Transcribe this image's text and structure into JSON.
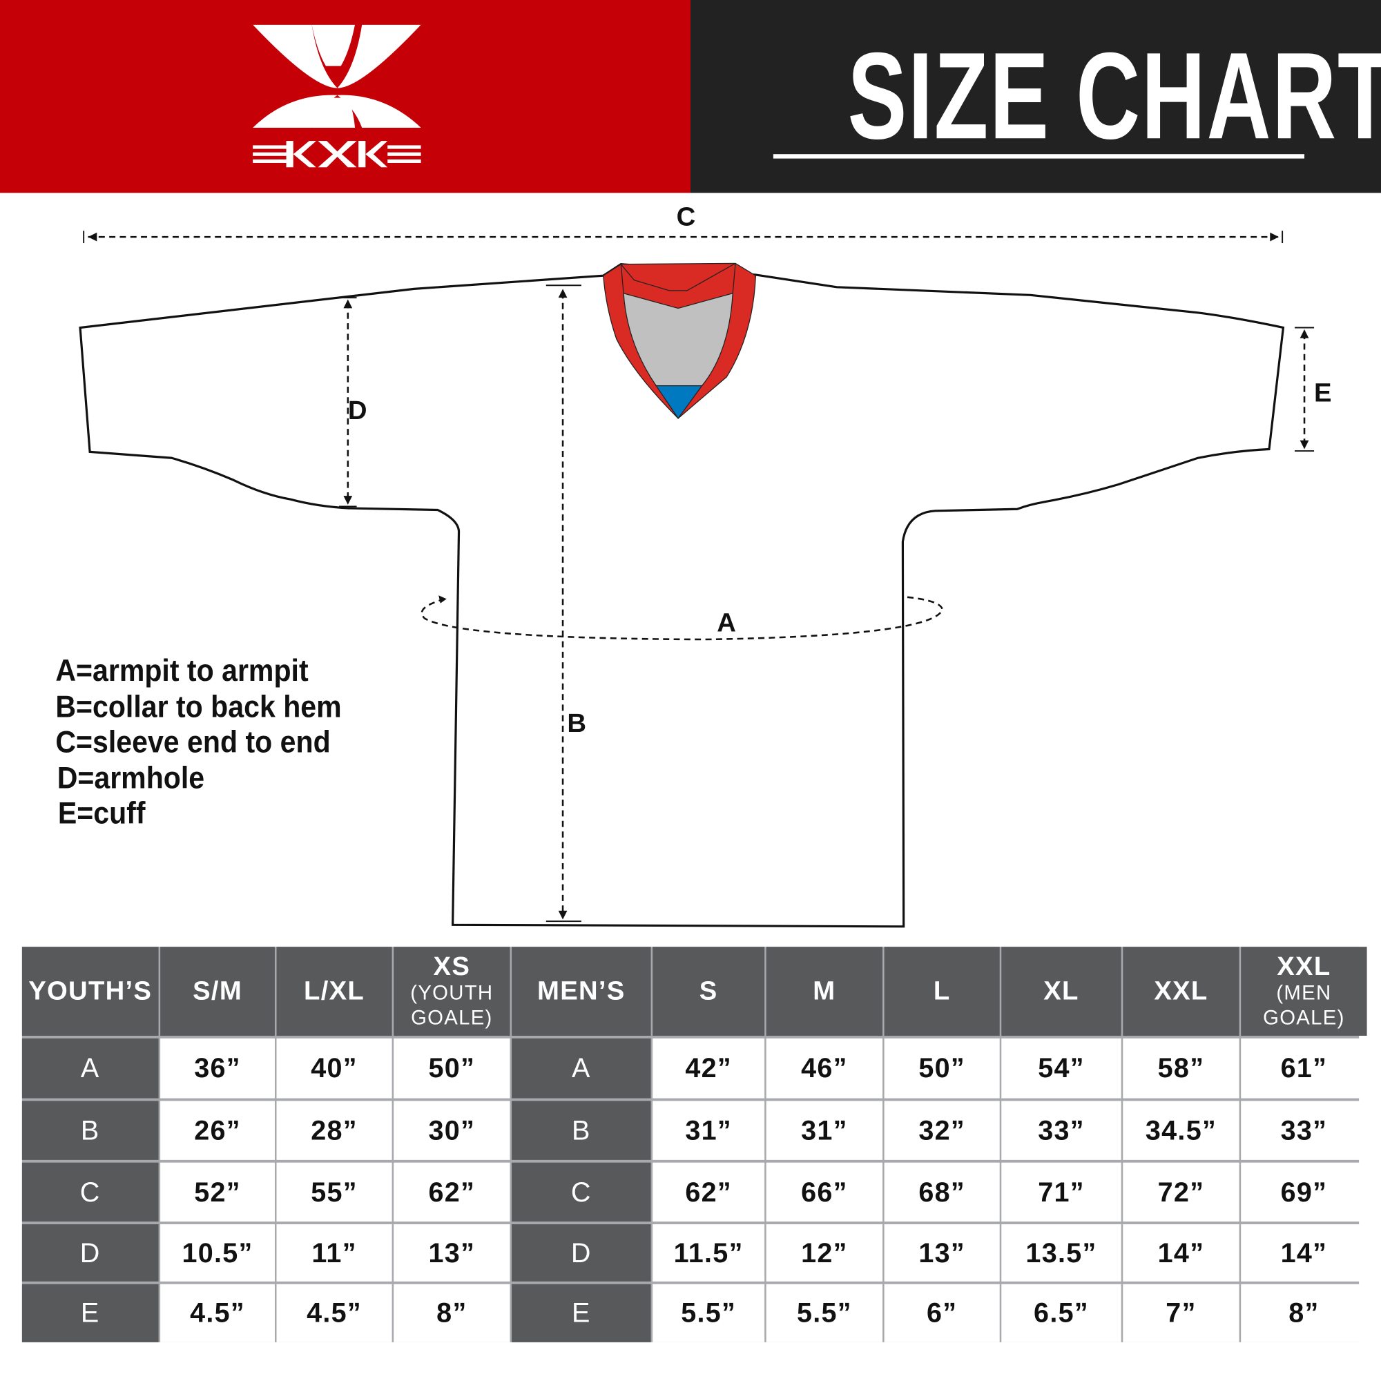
{
  "brand": {
    "logo_text": "KXK",
    "accent": "#c50006",
    "dark": "#222222"
  },
  "header": {
    "title": "SIZE CHART"
  },
  "diagram": {
    "labels": {
      "a": "A",
      "b": "B",
      "c": "C",
      "d": "D",
      "e": "E"
    },
    "collar_colors": {
      "trim": "#d92a23",
      "inner": "#c0c0c0",
      "tip": "#0079c1"
    }
  },
  "legend": [
    "A=armpit to armpit",
    "B=collar to back hem",
    "C=sleeve end to end",
    "D=armhole",
    "E=cuff"
  ],
  "table": {
    "headers": [
      {
        "main": "YOUTH’S"
      },
      {
        "main": "S/M"
      },
      {
        "main": "L/XL"
      },
      {
        "main": "XS",
        "sub": "(YOUTH GOALE)"
      },
      {
        "main": "MEN’S"
      },
      {
        "main": "S"
      },
      {
        "main": "M"
      },
      {
        "main": "L"
      },
      {
        "main": "XL"
      },
      {
        "main": "XXL"
      },
      {
        "main": "XXL",
        "sub": "(MEN GOALE)"
      }
    ],
    "rows": [
      [
        "A",
        "36”",
        "40”",
        "50”",
        "A",
        "42”",
        "46”",
        "50”",
        "54”",
        "58”",
        "61”"
      ],
      [
        "B",
        "26”",
        "28”",
        "30”",
        "B",
        "31”",
        "31”",
        "32”",
        "33”",
        "34.5”",
        "33”"
      ],
      [
        "C",
        "52”",
        "55”",
        "62”",
        "C",
        "62”",
        "66”",
        "68”",
        "71”",
        "72”",
        "69”"
      ],
      [
        "D",
        "10.5”",
        "11”",
        "13”",
        "D",
        "11.5”",
        "12”",
        "13”",
        "13.5”",
        "14”",
        "14”"
      ],
      [
        "E",
        "4.5”",
        "4.5”",
        "8”",
        "E",
        "5.5”",
        "5.5”",
        "6”",
        "6.5”",
        "7”",
        "8”"
      ]
    ]
  }
}
